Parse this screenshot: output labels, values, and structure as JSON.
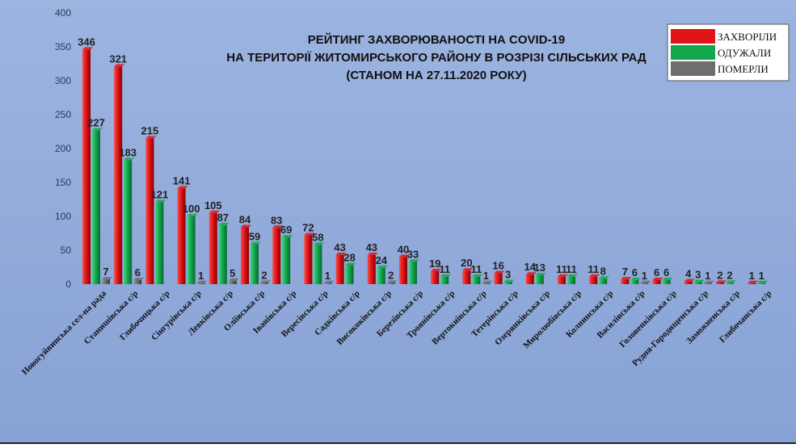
{
  "chart_data": {
    "type": "bar",
    "title_lines": [
      "РЕЙТИНГ ЗАХВОРЮВАНОСТІ НА COVID-19",
      "НА ТЕРИТОРІЇ ЖИТОМИРСЬКОГО РАЙОНУ В РОЗРІЗІ СІЛЬСЬКИХ РАД",
      "(СТАНОМ НА 27.11.2020 РОКУ)"
    ],
    "xlabel": "",
    "ylabel": "",
    "ylim": [
      0,
      400
    ],
    "yticks": [
      0,
      50,
      100,
      150,
      200,
      250,
      300,
      350,
      400
    ],
    "grid": false,
    "legend_position": "top-right",
    "categories": [
      "Новогуйвинська сел-на рада",
      "Станишівська с/р",
      "Глибочицька с/р",
      "Сінгурівська с/р",
      "Левківська с/р",
      "Оліївська с/р",
      "Іванівська с/р",
      "Вересівська с/р",
      "Садківська с/р",
      "Висококівська с/р",
      "Березівська с/р",
      "Троянівська с/р",
      "Вертокиївська с/р",
      "Тетерівська с/р",
      "Озерянківська с/р",
      "Миролюбівська с/р",
      "Колнинська с/р",
      "Василівська с/р",
      "Головенківська с/р",
      "Рудня-Городищенська с/р",
      "Заможненська с/р",
      "Глибочанська с/р"
    ],
    "series": [
      {
        "name": "ЗАХВОРІЛИ",
        "color": "#e01515",
        "values": [
          346,
          321,
          215,
          141,
          105,
          84,
          83,
          72,
          43,
          43,
          40,
          19,
          20,
          16,
          14,
          11,
          11,
          7,
          6,
          4,
          2,
          1
        ]
      },
      {
        "name": "ОДУЖАЛИ",
        "color": "#13a84e",
        "values": [
          227,
          183,
          121,
          100,
          87,
          59,
          69,
          58,
          28,
          24,
          33,
          11,
          11,
          3,
          13,
          11,
          8,
          6,
          6,
          3,
          2,
          1
        ]
      },
      {
        "name": "ПОМЕРЛИ",
        "color": "#6e6e6e",
        "values": [
          7,
          6,
          0,
          1,
          5,
          2,
          0,
          1,
          0,
          2,
          0,
          0,
          1,
          0,
          0,
          0,
          0,
          1,
          0,
          1,
          0,
          0
        ]
      }
    ]
  }
}
